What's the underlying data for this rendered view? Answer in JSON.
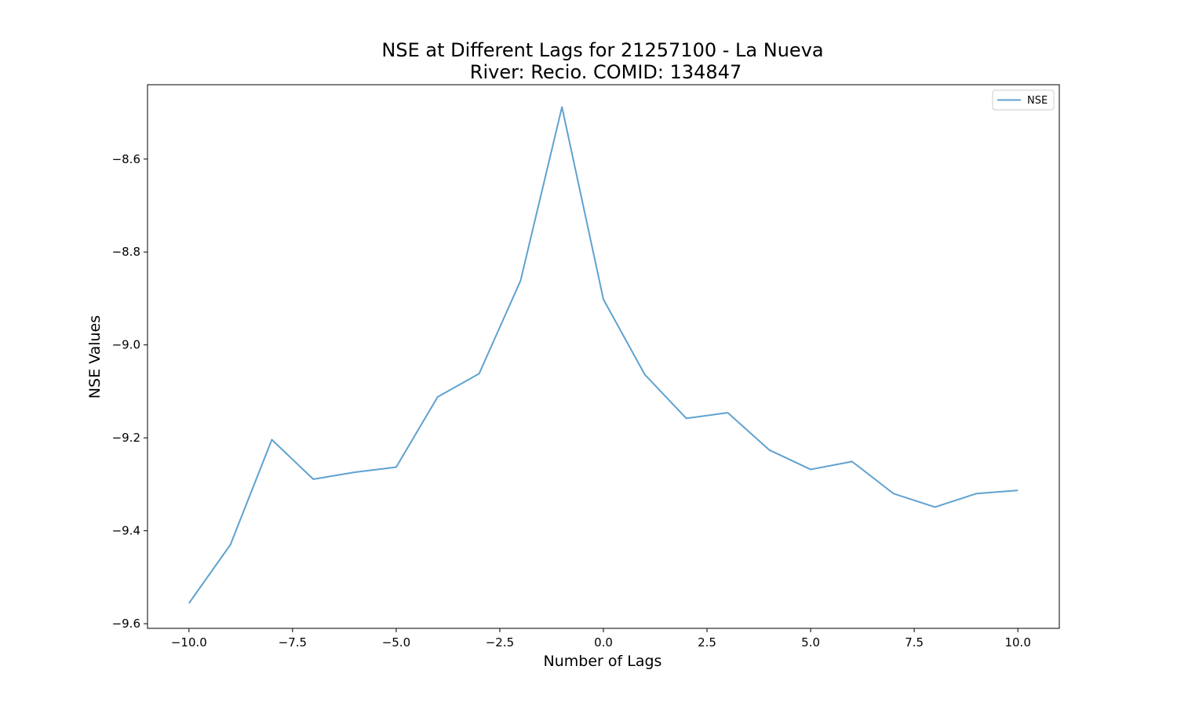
{
  "chart_data": {
    "type": "line",
    "title_line1": "NSE at Different Lags for 21257100 - La Nueva",
    "title_line2": "River: Recio. COMID: 134847",
    "xlabel": "Number of Lags",
    "ylabel": "NSE Values",
    "xlim": [
      -11,
      11
    ],
    "ylim": [
      -9.61,
      -8.44
    ],
    "x_ticks": [
      -10.0,
      -7.5,
      -5.0,
      -2.5,
      0.0,
      2.5,
      5.0,
      7.5,
      10.0
    ],
    "x_tick_labels": [
      "−10.0",
      "−7.5",
      "−5.0",
      "−2.5",
      "0.0",
      "2.5",
      "5.0",
      "7.5",
      "10.0"
    ],
    "y_ticks": [
      -9.6,
      -9.4,
      -9.2,
      -9.0,
      -8.8,
      -8.6
    ],
    "y_tick_labels": [
      "−9.6",
      "−9.4",
      "−9.2",
      "−9.0",
      "−8.8",
      "−8.6"
    ],
    "grid": false,
    "legend_position": "top-right",
    "line_color": "#5fa2cf",
    "series": [
      {
        "name": "NSE",
        "x": [
          -10,
          -9,
          -8,
          -7,
          -6,
          -5,
          -4,
          -3,
          -2,
          -1,
          0,
          1,
          2,
          3,
          4,
          5,
          6,
          7,
          8,
          9,
          10
        ],
        "values": [
          -9.556,
          -9.43,
          -9.204,
          -9.289,
          -9.274,
          -9.263,
          -9.112,
          -9.062,
          -8.862,
          -8.488,
          -8.902,
          -9.064,
          -9.158,
          -9.146,
          -9.226,
          -9.268,
          -9.251,
          -9.32,
          -9.349,
          -9.32,
          -9.313
        ]
      }
    ]
  }
}
